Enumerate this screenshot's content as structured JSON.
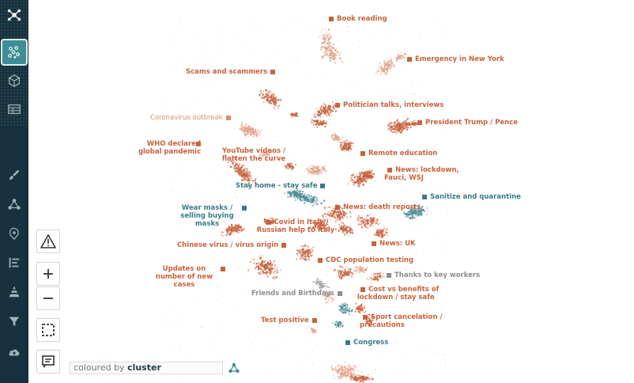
{
  "sidebar": {
    "items": [
      {
        "icon": "network-logo-icon",
        "active": false
      },
      {
        "icon": "scatter-clusters-icon",
        "active": true
      },
      {
        "icon": "cube-icon",
        "active": false
      },
      {
        "icon": "table-icon",
        "active": false
      },
      {
        "icon": "brush-icon",
        "active": false
      },
      {
        "icon": "graph-nodes-icon",
        "active": false
      },
      {
        "icon": "map-pin-icon",
        "active": false
      },
      {
        "icon": "bar-list-icon",
        "active": false
      },
      {
        "icon": "pyramid-icon",
        "active": false
      },
      {
        "icon": "filter-icon",
        "active": false
      },
      {
        "icon": "cloud-upload-icon",
        "active": false
      }
    ]
  },
  "legend": {
    "prefix": "coloured by",
    "value": "cluster"
  },
  "colors": {
    "orange": "#c8633d",
    "light_orange": "#d78f72",
    "teal": "#3b7b88",
    "grey": "#8e8e8e",
    "sidebar": "#17323e",
    "sidebar_active": "#3f8e95"
  },
  "clusters": [
    {
      "label": "Book reading",
      "color": "orange"
    },
    {
      "label": "Emergency in New York",
      "color": "orange"
    },
    {
      "label": "Scams and scammers",
      "color": "orange"
    },
    {
      "label": "Politician talks, interviews",
      "color": "orange"
    },
    {
      "label": "Coronavirus outbreak",
      "color": "light_orange"
    },
    {
      "label": "President Trump / Pence",
      "color": "orange"
    },
    {
      "label": "WHO declared global pandemic",
      "color": "orange"
    },
    {
      "label": "YouTube videos / flatten the curve",
      "color": "orange"
    },
    {
      "label": "Remote education",
      "color": "orange"
    },
    {
      "label": "News: lockdown, Fauci, WSJ",
      "color": "orange"
    },
    {
      "label": "Stay home - stay safe",
      "color": "teal"
    },
    {
      "label": "Sanitize and quarantine",
      "color": "teal"
    },
    {
      "label": "Wear masks / selling buying masks",
      "color": "teal"
    },
    {
      "label": "News: death reports",
      "color": "orange"
    },
    {
      "label": "Covid in Italy / Russian help to Italy",
      "color": "orange"
    },
    {
      "label": "Chinese virus / virus origin",
      "color": "orange"
    },
    {
      "label": "News: UK",
      "color": "orange"
    },
    {
      "label": "CDC population testing",
      "color": "orange"
    },
    {
      "label": "Updates on number of new cases",
      "color": "orange"
    },
    {
      "label": "Thanks to key workers",
      "color": "grey"
    },
    {
      "label": "Friends and Birthdays",
      "color": "grey"
    },
    {
      "label": "Cost vs benefits of lockdown / stay safe",
      "color": "orange"
    },
    {
      "label": "Test positive",
      "color": "orange"
    },
    {
      "label": "Sport cancelation / precautions",
      "color": "orange"
    },
    {
      "label": "Congress",
      "color": "teal"
    }
  ]
}
